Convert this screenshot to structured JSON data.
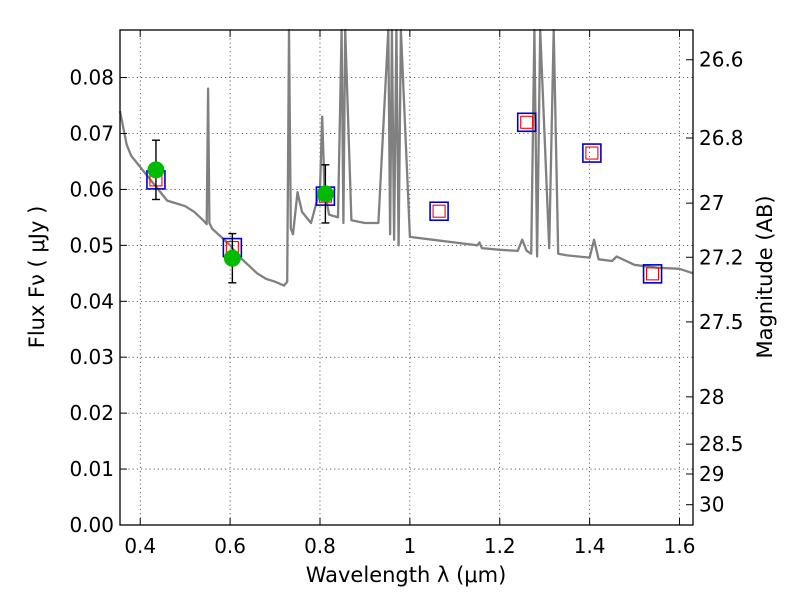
{
  "chart_data": {
    "type": "scatter",
    "xlabel": "Wavelength  λ (μm)",
    "ylabel": "Flux  Fν  ( μJy )",
    "y2label": "Magnitude (AB)",
    "xlim": [
      0.355,
      1.63
    ],
    "ylim": [
      0.0,
      0.0885
    ],
    "grid": true,
    "x_ticks": [
      0.4,
      0.6,
      0.8,
      1.0,
      1.2,
      1.4,
      1.6
    ],
    "x_tick_labels": [
      "0.4",
      "0.6",
      "0.8",
      "1",
      "1.2",
      "1.4",
      "1.6"
    ],
    "y_ticks": [
      0.0,
      0.01,
      0.02,
      0.03,
      0.04,
      0.05,
      0.06,
      0.07,
      0.08
    ],
    "y_tick_labels": [
      "0.00",
      "0.01",
      "0.02",
      "0.03",
      "0.04",
      "0.05",
      "0.06",
      "0.07",
      "0.08"
    ],
    "mag_ticks": [
      26.6,
      26.8,
      27.0,
      27.2,
      27.5,
      28.0,
      28.5,
      29.0,
      30.0
    ],
    "mag_tick_labels": [
      "26.6",
      "26.8",
      "27",
      "27.2",
      "27.5",
      "28",
      "28.5",
      "29",
      "30"
    ],
    "colors": {
      "model": "#808080",
      "observed": "#00bb00",
      "model_band_outer": "#0000cc",
      "model_band_inner": "#ff0000",
      "errorbar": "#000000"
    },
    "model_spectrum": {
      "x": [
        0.355,
        0.36,
        0.37,
        0.38,
        0.39,
        0.4,
        0.41,
        0.42,
        0.43,
        0.44,
        0.45,
        0.46,
        0.48,
        0.5,
        0.52,
        0.54,
        0.548,
        0.551,
        0.554,
        0.56,
        0.58,
        0.6,
        0.62,
        0.64,
        0.66,
        0.68,
        0.7,
        0.72,
        0.727,
        0.731,
        0.735,
        0.74,
        0.75,
        0.76,
        0.78,
        0.8,
        0.805,
        0.81,
        0.82,
        0.84,
        0.848,
        0.852,
        0.856,
        0.87,
        0.9,
        0.93,
        0.952,
        0.956,
        0.96,
        0.965,
        0.97,
        0.975,
        0.98,
        1.0,
        1.05,
        1.1,
        1.15,
        1.155,
        1.16,
        1.2,
        1.24,
        1.25,
        1.26,
        1.27,
        1.277,
        1.283,
        1.29,
        1.31,
        1.32,
        1.33,
        1.35,
        1.4,
        1.41,
        1.42,
        1.45,
        1.46,
        1.5,
        1.55,
        1.6,
        1.63
      ],
      "y": [
        0.074,
        0.072,
        0.068,
        0.066,
        0.065,
        0.064,
        0.063,
        0.062,
        0.061,
        0.06,
        0.059,
        0.058,
        0.0575,
        0.057,
        0.056,
        0.0545,
        0.0538,
        0.078,
        0.054,
        0.053,
        0.0515,
        0.05,
        0.048,
        0.0465,
        0.045,
        0.044,
        0.0435,
        0.0428,
        0.0435,
        0.0885,
        0.053,
        0.052,
        0.0595,
        0.056,
        0.054,
        0.06,
        0.073,
        0.06,
        0.0555,
        0.055,
        0.0885,
        0.054,
        0.0885,
        0.0545,
        0.054,
        0.054,
        0.0885,
        0.052,
        0.0885,
        0.051,
        0.0885,
        0.05,
        0.0885,
        0.0515,
        0.051,
        0.0505,
        0.05,
        0.0505,
        0.0495,
        0.0492,
        0.049,
        0.051,
        0.049,
        0.0485,
        0.0885,
        0.048,
        0.0885,
        0.0495,
        0.0885,
        0.0485,
        0.0482,
        0.0478,
        0.051,
        0.0475,
        0.0472,
        0.048,
        0.0465,
        0.046,
        0.0458,
        0.045
      ]
    },
    "observed": {
      "name": "observed",
      "x": [
        0.435,
        0.605,
        0.812
      ],
      "y": [
        0.0635,
        0.0477,
        0.0592
      ],
      "yerr": [
        0.0053,
        0.0044,
        0.0052
      ]
    },
    "model_band_fluxes": {
      "name": "model",
      "x": [
        0.435,
        0.605,
        0.812,
        1.065,
        1.26,
        1.405,
        1.54
      ],
      "y": [
        0.0617,
        0.0496,
        0.0588,
        0.0561,
        0.072,
        0.0665,
        0.0449
      ]
    }
  }
}
